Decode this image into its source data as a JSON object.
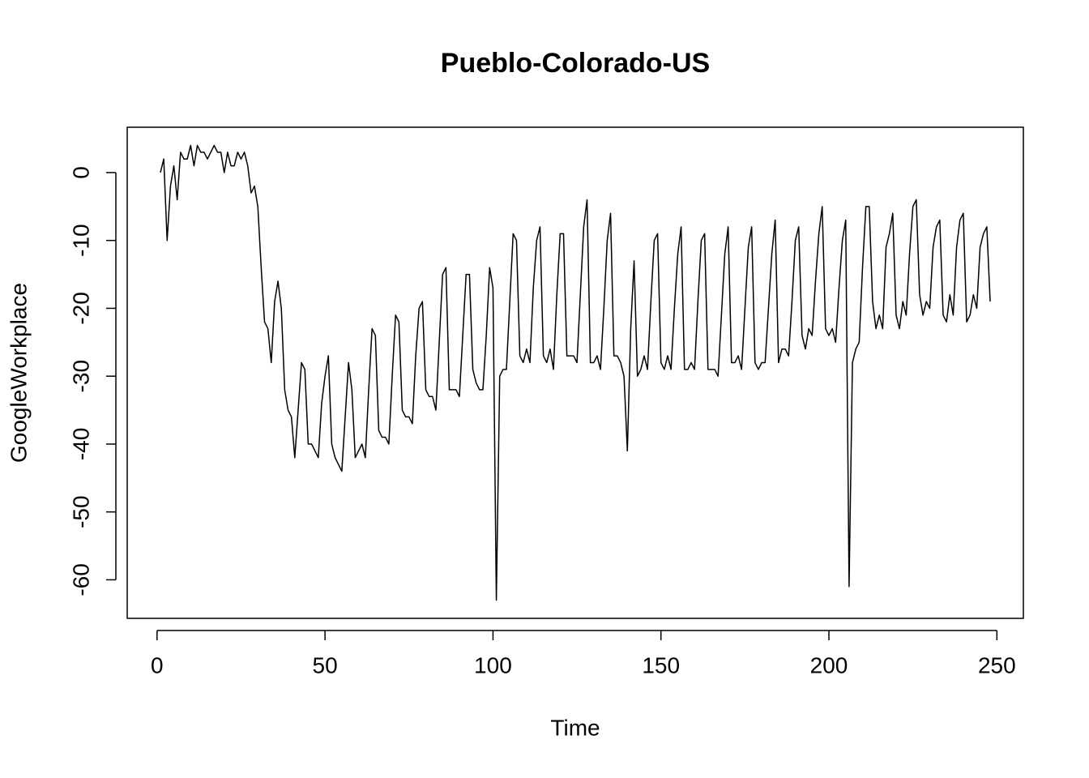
{
  "chart_data": {
    "type": "line",
    "title": "Pueblo-Colorado-US",
    "x_label": "Time",
    "y_label": "GoogleWorkplace",
    "xlim": [
      -8.88,
      257.88
    ],
    "ylim": [
      -65.68,
      6.68
    ],
    "xticks": [
      0,
      50,
      100,
      150,
      200,
      250
    ],
    "yticks": [
      -60,
      -50,
      -40,
      -30,
      -20,
      -10,
      0
    ],
    "x": [
      1,
      2,
      3,
      4,
      5,
      6,
      7,
      8,
      9,
      10,
      11,
      12,
      13,
      14,
      15,
      16,
      17,
      18,
      19,
      20,
      21,
      22,
      23,
      24,
      25,
      26,
      27,
      28,
      29,
      30,
      31,
      32,
      33,
      34,
      35,
      36,
      37,
      38,
      39,
      40,
      41,
      42,
      43,
      44,
      45,
      46,
      47,
      48,
      49,
      50,
      51,
      52,
      53,
      54,
      55,
      56,
      57,
      58,
      59,
      60,
      61,
      62,
      63,
      64,
      65,
      66,
      67,
      68,
      69,
      70,
      71,
      72,
      73,
      74,
      75,
      76,
      77,
      78,
      79,
      80,
      81,
      82,
      83,
      84,
      85,
      86,
      87,
      88,
      89,
      90,
      91,
      92,
      93,
      94,
      95,
      96,
      97,
      98,
      99,
      100,
      101,
      102,
      103,
      104,
      105,
      106,
      107,
      108,
      109,
      110,
      111,
      112,
      113,
      114,
      115,
      116,
      117,
      118,
      119,
      120,
      121,
      122,
      123,
      124,
      125,
      126,
      127,
      128,
      129,
      130,
      131,
      132,
      133,
      134,
      135,
      136,
      137,
      138,
      139,
      140,
      141,
      142,
      143,
      144,
      145,
      146,
      147,
      148,
      149,
      150,
      151,
      152,
      153,
      154,
      155,
      156,
      157,
      158,
      159,
      160,
      161,
      162,
      163,
      164,
      165,
      166,
      167,
      168,
      169,
      170,
      171,
      172,
      173,
      174,
      175,
      176,
      177,
      178,
      179,
      180,
      181,
      182,
      183,
      184,
      185,
      186,
      187,
      188,
      189,
      190,
      191,
      192,
      193,
      194,
      195,
      196,
      197,
      198,
      199,
      200,
      201,
      202,
      203,
      204,
      205,
      206,
      207,
      208,
      209,
      210,
      211,
      212,
      213,
      214,
      215,
      216,
      217,
      218,
      219,
      220,
      221,
      222,
      223,
      224,
      225,
      226,
      227,
      228,
      229,
      230,
      231,
      232,
      233,
      234,
      235,
      236,
      237,
      238,
      239,
      240,
      241,
      242,
      243,
      244,
      245,
      246,
      247,
      248
    ],
    "series": [
      {
        "name": "GoogleWorkplace",
        "color": "#000000",
        "values": [
          0,
          2,
          -10,
          -2,
          1,
          -4,
          3,
          2,
          2,
          4,
          1,
          4,
          3,
          3,
          2,
          3,
          4,
          3,
          3,
          0,
          3,
          1,
          1,
          3,
          2,
          3,
          1,
          -3,
          -2,
          -5,
          -14,
          -22,
          -23,
          -28,
          -19,
          -16,
          -20,
          -32,
          -35,
          -36,
          -42,
          -35,
          -28,
          -29,
          -40,
          -40,
          -41,
          -42,
          -34,
          -30,
          -27,
          -40,
          -42,
          -43,
          -44,
          -36,
          -28,
          -32,
          -42,
          -41,
          -40,
          -42,
          -32,
          -23,
          -24,
          -38,
          -39,
          -39,
          -40,
          -30,
          -21,
          -22,
          -35,
          -36,
          -36,
          -37,
          -27,
          -20,
          -19,
          -32,
          -33,
          -33,
          -35,
          -25,
          -15,
          -14,
          -32,
          -32,
          -32,
          -33,
          -24,
          -15,
          -15,
          -29,
          -31,
          -32,
          -32,
          -24,
          -14,
          -17,
          -63,
          -30,
          -29,
          -29,
          -19,
          -9,
          -10,
          -27,
          -28,
          -26,
          -28,
          -17,
          -10,
          -8,
          -27,
          -28,
          -26,
          -29,
          -18,
          -9,
          -9,
          -27,
          -27,
          -27,
          -28,
          -18,
          -8,
          -4,
          -28,
          -28,
          -27,
          -29,
          -20,
          -10,
          -6,
          -27,
          -27,
          -28,
          -30,
          -41,
          -23,
          -13,
          -30,
          -29,
          -27,
          -29,
          -19,
          -10,
          -9,
          -28,
          -29,
          -27,
          -29,
          -20,
          -12,
          -8,
          -29,
          -29,
          -28,
          -29,
          -19,
          -10,
          -9,
          -29,
          -29,
          -29,
          -30,
          -21,
          -12,
          -8,
          -28,
          -28,
          -27,
          -29,
          -20,
          -11,
          -8,
          -28,
          -29,
          -28,
          -28,
          -20,
          -12,
          -7,
          -28,
          -26,
          -26,
          -27,
          -19,
          -10,
          -8,
          -24,
          -26,
          -23,
          -24,
          -16,
          -9,
          -5,
          -23,
          -24,
          -23,
          -25,
          -17,
          -10,
          -7,
          -61,
          -28,
          -26,
          -25,
          -14,
          -5,
          -5,
          -19,
          -23,
          -21,
          -23,
          -11,
          -9,
          -6,
          -21,
          -23,
          -19,
          -21,
          -12,
          -5,
          -4,
          -18,
          -21,
          -19,
          -20,
          -11,
          -8,
          -7,
          -21,
          -22,
          -18,
          -21,
          -11,
          -7,
          -6,
          -22,
          -21,
          -18,
          -20,
          -11,
          -9,
          -8,
          -19
        ]
      }
    ]
  }
}
